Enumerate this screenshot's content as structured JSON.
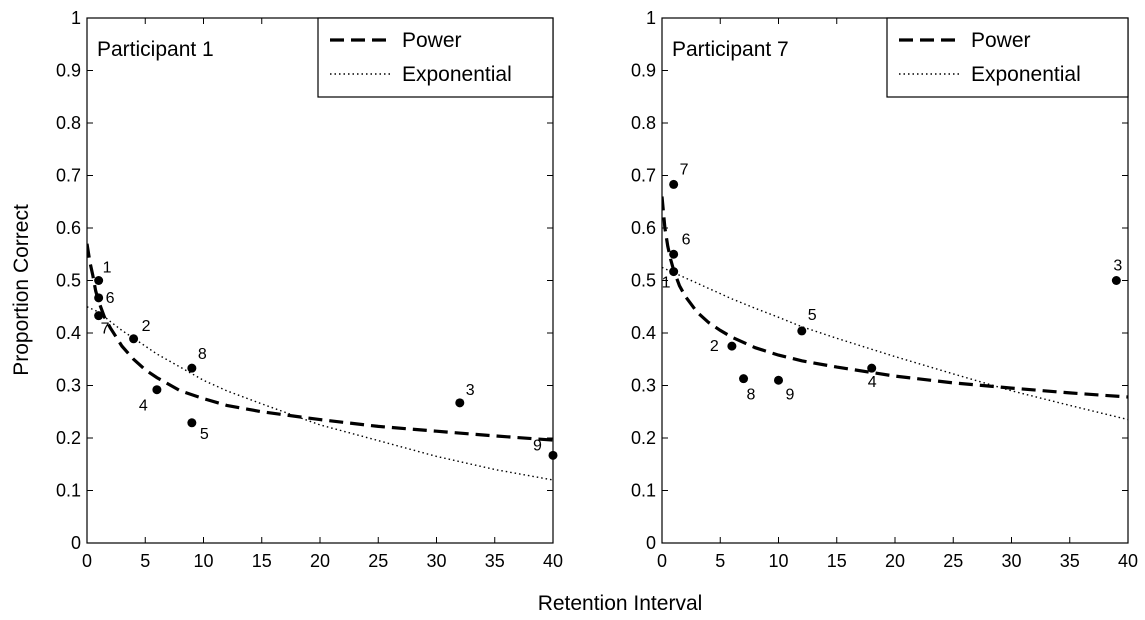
{
  "chart_data": [
    {
      "type": "scatter",
      "panel_label": "Participant 1",
      "xlabel": "Retention Interval",
      "ylabel": "Proportion Correct",
      "xlim": [
        0,
        40
      ],
      "ylim": [
        0,
        1
      ],
      "xticks": [
        0,
        5,
        10,
        15,
        20,
        25,
        30,
        35,
        40
      ],
      "yticks": [
        0,
        0.1,
        0.2,
        0.3,
        0.4,
        0.5,
        0.6,
        0.7,
        0.8,
        0.9,
        1
      ],
      "legend_position": "top-right",
      "legend": [
        {
          "name": "Power",
          "style": "dashed"
        },
        {
          "name": "Exponential",
          "style": "dotted"
        }
      ],
      "points": [
        {
          "label": "1",
          "x": 1,
          "y": 0.5
        },
        {
          "label": "6",
          "x": 1,
          "y": 0.467
        },
        {
          "label": "7",
          "x": 1,
          "y": 0.433
        },
        {
          "label": "2",
          "x": 4,
          "y": 0.389
        },
        {
          "label": "4",
          "x": 6,
          "y": 0.292
        },
        {
          "label": "8",
          "x": 9,
          "y": 0.333
        },
        {
          "label": "5",
          "x": 9,
          "y": 0.229
        },
        {
          "label": "3",
          "x": 32,
          "y": 0.267
        },
        {
          "label": "9",
          "x": 40,
          "y": 0.167
        }
      ],
      "series": [
        {
          "name": "Power",
          "x": [
            0,
            0.25,
            0.5,
            0.75,
            1,
            1.5,
            2,
            3,
            4,
            5,
            6,
            8,
            10,
            12,
            15,
            20,
            25,
            30,
            35,
            40
          ],
          "y": [
            0.57,
            0.535,
            0.51,
            0.48,
            0.46,
            0.43,
            0.41,
            0.375,
            0.35,
            0.33,
            0.315,
            0.29,
            0.275,
            0.262,
            0.25,
            0.235,
            0.222,
            0.213,
            0.204,
            0.196
          ]
        },
        {
          "name": "Exponential",
          "x": [
            0,
            1,
            2,
            3,
            4,
            5,
            6,
            8,
            10,
            12,
            15,
            20,
            25,
            30,
            35,
            40
          ],
          "y": [
            0.45,
            0.44,
            0.422,
            0.405,
            0.39,
            0.375,
            0.36,
            0.335,
            0.31,
            0.29,
            0.265,
            0.225,
            0.195,
            0.165,
            0.14,
            0.12
          ]
        }
      ]
    },
    {
      "type": "scatter",
      "panel_label": "Participant 7",
      "xlabel": "Retention Interval",
      "ylabel": "Proportion Correct",
      "xlim": [
        0,
        40
      ],
      "ylim": [
        0,
        1
      ],
      "xticks": [
        0,
        5,
        10,
        15,
        20,
        25,
        30,
        35,
        40
      ],
      "yticks": [
        0,
        0.1,
        0.2,
        0.3,
        0.4,
        0.5,
        0.6,
        0.7,
        0.8,
        0.9,
        1
      ],
      "legend_position": "top-right",
      "legend": [
        {
          "name": "Power",
          "style": "dashed"
        },
        {
          "name": "Exponential",
          "style": "dotted"
        }
      ],
      "points": [
        {
          "label": "7",
          "x": 1,
          "y": 0.683
        },
        {
          "label": "6",
          "x": 1,
          "y": 0.55
        },
        {
          "label": "1",
          "x": 1,
          "y": 0.517
        },
        {
          "label": "2",
          "x": 6,
          "y": 0.375
        },
        {
          "label": "8",
          "x": 7,
          "y": 0.313
        },
        {
          "label": "9",
          "x": 10,
          "y": 0.31
        },
        {
          "label": "5",
          "x": 12,
          "y": 0.404
        },
        {
          "label": "4",
          "x": 18,
          "y": 0.333
        },
        {
          "label": "3",
          "x": 39,
          "y": 0.5
        }
      ],
      "series": [
        {
          "name": "Power",
          "x": [
            0,
            0.25,
            0.5,
            0.75,
            1,
            1.5,
            2,
            3,
            4,
            5,
            6,
            8,
            10,
            12,
            15,
            20,
            25,
            30,
            35,
            40
          ],
          "y": [
            0.66,
            0.6,
            0.565,
            0.54,
            0.52,
            0.49,
            0.47,
            0.44,
            0.42,
            0.405,
            0.392,
            0.372,
            0.358,
            0.347,
            0.335,
            0.318,
            0.305,
            0.295,
            0.286,
            0.278
          ]
        },
        {
          "name": "Exponential",
          "x": [
            0,
            1,
            2,
            3,
            4,
            5,
            6,
            8,
            10,
            12,
            15,
            20,
            25,
            30,
            35,
            40
          ],
          "y": [
            0.525,
            0.515,
            0.505,
            0.495,
            0.485,
            0.475,
            0.465,
            0.447,
            0.43,
            0.412,
            0.39,
            0.355,
            0.322,
            0.29,
            0.262,
            0.235
          ]
        }
      ]
    }
  ]
}
